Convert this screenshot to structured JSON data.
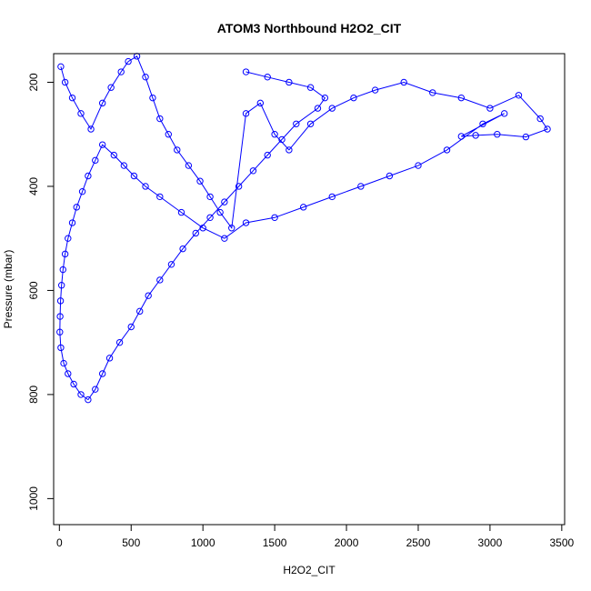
{
  "chart_data": {
    "type": "scatter",
    "title": "ATOM3 Northbound H2O2_CIT",
    "xlabel": "H2O2_CIT",
    "ylabel": "Pressure (mbar)",
    "xlim": [
      -40,
      3520
    ],
    "ylim": [
      1050,
      145
    ],
    "y_reversed": true,
    "x_ticks": [
      0,
      500,
      1000,
      1500,
      2000,
      2500,
      3000,
      3500
    ],
    "y_ticks": [
      200,
      400,
      600,
      800,
      1000
    ],
    "grid": false,
    "legend": "none",
    "series": [
      {
        "style": "points-and-lines",
        "x": [
          10,
          40,
          90,
          150,
          220,
          300,
          360,
          430,
          480,
          540,
          600,
          650,
          700,
          760,
          820,
          900,
          980,
          1050,
          1120,
          1200,
          1300,
          1400,
          1500,
          1600,
          1750,
          1900,
          2050,
          2200,
          2400,
          2600,
          2800,
          3000,
          3200,
          3350,
          3400,
          3250,
          3050,
          2900,
          2800,
          3100,
          2950,
          2700,
          2500,
          2300,
          2100,
          1900,
          1700,
          1500,
          1300,
          1150,
          1000,
          850,
          700,
          600,
          520,
          450,
          380,
          300,
          250,
          200,
          160,
          120,
          90,
          60,
          40,
          25,
          15,
          8,
          5,
          3,
          10,
          30,
          60,
          100,
          150,
          200,
          250,
          300,
          350,
          420,
          500,
          560,
          620,
          700,
          780,
          860,
          950,
          1050,
          1150,
          1250,
          1350,
          1450,
          1550,
          1650,
          1800,
          1850,
          1750,
          1600,
          1450,
          1300
        ],
        "y": [
          170,
          200,
          230,
          260,
          290,
          240,
          210,
          180,
          160,
          150,
          190,
          230,
          270,
          300,
          330,
          360,
          390,
          420,
          450,
          480,
          260,
          240,
          300,
          330,
          280,
          250,
          230,
          215,
          200,
          220,
          230,
          250,
          225,
          270,
          290,
          305,
          300,
          302,
          304,
          260,
          280,
          330,
          360,
          380,
          400,
          420,
          440,
          460,
          470,
          500,
          480,
          450,
          420,
          400,
          380,
          360,
          340,
          320,
          350,
          380,
          410,
          440,
          470,
          500,
          530,
          560,
          590,
          620,
          650,
          680,
          710,
          740,
          760,
          780,
          800,
          810,
          790,
          760,
          730,
          700,
          670,
          640,
          610,
          580,
          550,
          520,
          490,
          460,
          430,
          400,
          370,
          340,
          310,
          280,
          250,
          230,
          210,
          200,
          190,
          180
        ]
      }
    ]
  }
}
